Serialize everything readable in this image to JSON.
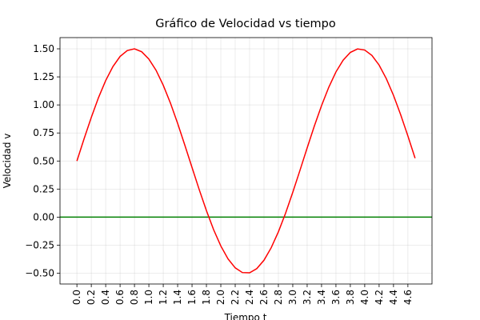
{
  "chart_data": {
    "type": "line",
    "title": "Gráfico de Velocidad vs tiempo",
    "xlabel": "Tiempo t",
    "ylabel": "Velocidad v",
    "x": [
      0.0,
      0.1,
      0.2,
      0.3,
      0.4,
      0.5,
      0.6,
      0.7,
      0.8,
      0.9,
      1.0,
      1.1,
      1.2,
      1.3,
      1.4,
      1.5,
      1.6,
      1.7,
      1.8,
      1.9,
      2.0,
      2.1,
      2.2,
      2.3,
      2.4,
      2.5,
      2.6,
      2.7,
      2.8,
      2.9,
      3.0,
      3.1,
      3.2,
      3.3,
      3.4,
      3.5,
      3.6,
      3.7,
      3.8,
      3.9,
      4.0,
      4.1,
      4.2,
      4.3,
      4.4,
      4.5,
      4.6,
      4.7
    ],
    "series": [
      {
        "color": "#ff0000",
        "values": [
          0.5,
          0.699,
          0.889,
          1.065,
          1.217,
          1.341,
          1.432,
          1.485,
          1.5,
          1.474,
          1.409,
          1.309,
          1.175,
          1.016,
          0.835,
          0.641,
          0.442,
          0.245,
          0.058,
          -0.112,
          -0.257,
          -0.372,
          -0.452,
          -0.494,
          -0.496,
          -0.459,
          -0.384,
          -0.273,
          -0.131,
          0.035,
          0.221,
          0.417,
          0.617,
          0.812,
          0.994,
          1.157,
          1.294,
          1.399,
          1.468,
          1.499,
          1.489,
          1.441,
          1.355,
          1.234,
          1.085,
          0.912,
          0.723,
          0.525
        ]
      }
    ],
    "hlines": [
      {
        "y": 0,
        "color": "#008000"
      }
    ],
    "xlim": [
      -0.235,
      4.935
    ],
    "ylim": [
      -0.596,
      1.6
    ],
    "xticks": [
      {
        "value": 0,
        "label": "0.0"
      },
      0.2,
      0.4,
      0.6,
      0.8,
      {
        "value": 1,
        "label": "1.0"
      },
      1.2,
      1.4,
      1.6,
      1.8,
      {
        "value": 2,
        "label": "2.0"
      },
      2.2,
      2.4,
      2.6,
      2.8,
      {
        "value": 3,
        "label": "3.0"
      },
      3.2,
      3.4,
      3.6,
      3.8,
      {
        "value": 4,
        "label": "4.0"
      },
      4.2,
      4.4,
      4.6
    ],
    "yticks": [
      {
        "value": -0.5,
        "label": "−0.50"
      },
      {
        "value": -0.25,
        "label": "−0.25"
      },
      {
        "value": 0,
        "label": "0.00"
      },
      {
        "value": 0.25,
        "label": "0.25"
      },
      {
        "value": 0.5,
        "label": "0.50"
      },
      {
        "value": 0.75,
        "label": "0.75"
      },
      {
        "value": 1,
        "label": "1.00"
      },
      {
        "value": 1.25,
        "label": "1.25"
      },
      {
        "value": 1.5,
        "label": "1.50"
      }
    ],
    "grid": true
  }
}
